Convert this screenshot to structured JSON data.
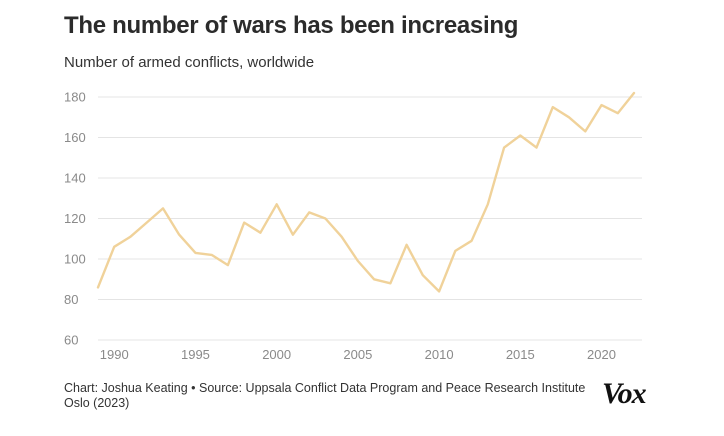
{
  "header": {
    "title": "The number of wars has been increasing",
    "subtitle": "Number of armed conflicts, worldwide"
  },
  "footer": {
    "source": "Chart: Joshua Keating • Source: Uppsala Conflict Data Program and Peace Research Institute Oslo (2023)",
    "logo": "Vox"
  },
  "colors": {
    "line": "#f0d29a",
    "grid": "#e4e4e4",
    "tick": "#8a8a8a"
  },
  "chart_data": {
    "type": "line",
    "title": "The number of wars has been increasing",
    "subtitle": "Number of armed conflicts, worldwide",
    "xlabel": "",
    "ylabel": "",
    "xlim": [
      1989,
      2022
    ],
    "ylim": [
      60,
      180
    ],
    "xticks": [
      1990,
      1995,
      2000,
      2005,
      2010,
      2015,
      2020
    ],
    "yticks": [
      60,
      80,
      100,
      120,
      140,
      160,
      180
    ],
    "grid": true,
    "series": [
      {
        "x": [
          1989,
          1990,
          1991,
          1992,
          1993,
          1994,
          1995,
          1996,
          1997,
          1998,
          1999,
          2000,
          2001,
          2002,
          2003,
          2004,
          2005,
          2006,
          2007,
          2008,
          2009,
          2010,
          2011,
          2012,
          2013,
          2014,
          2015,
          2016,
          2017,
          2018,
          2019,
          2020,
          2021,
          2022
        ],
        "y": [
          86,
          106,
          111,
          118,
          125,
          112,
          103,
          102,
          97,
          118,
          113,
          127,
          112,
          123,
          120,
          111,
          99,
          90,
          88,
          107,
          92,
          84,
          104,
          109,
          127,
          155,
          161,
          155,
          175,
          170,
          163,
          176,
          172,
          182
        ]
      }
    ]
  }
}
